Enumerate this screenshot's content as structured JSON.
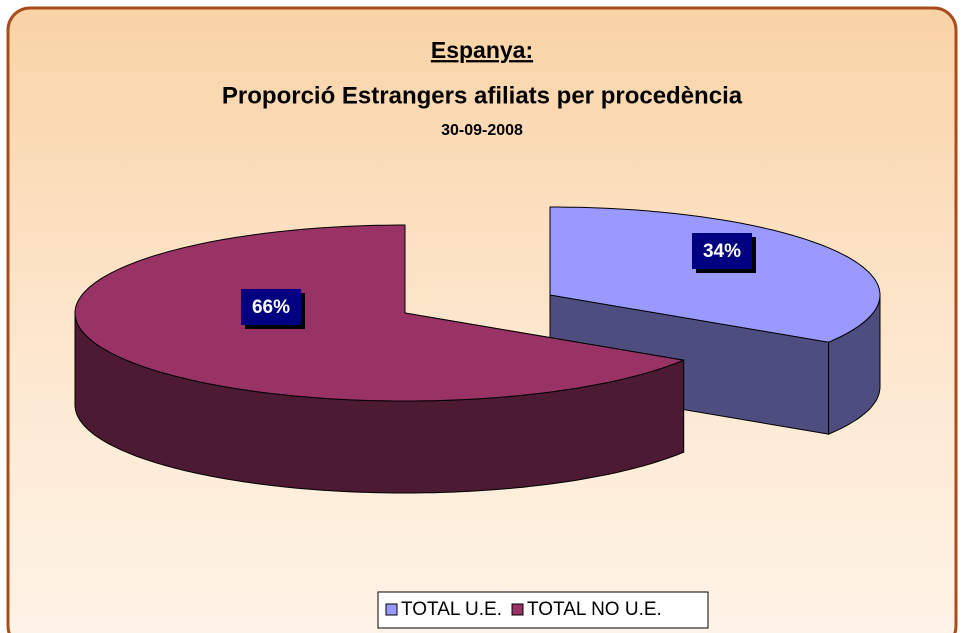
{
  "chart_data": {
    "type": "pie3d",
    "title": "Espanya:",
    "subtitle": "Proporció Estrangers afiliats per procedència",
    "date": "30-09-2008",
    "categories": [
      "TOTAL U.E.",
      "TOTAL NO U.E."
    ],
    "values": [
      34,
      66
    ],
    "value_labels": [
      "34%",
      "66%"
    ],
    "colors": [
      "#9999ff",
      "#993366"
    ],
    "legend": "bottom"
  }
}
